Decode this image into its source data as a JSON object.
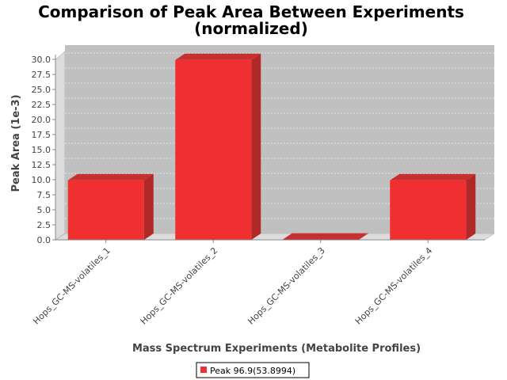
{
  "chart_data": {
    "type": "bar",
    "title_lines": [
      "Comparison of Peak Area Between Experiments",
      "(normalized)"
    ],
    "xlabel": "Mass Spectrum Experiments (Metabolite Profiles)",
    "ylabel": "Peak Area (1e-3)",
    "categories": [
      "Hops_GC-MS-volatiles_1",
      "Hops_GC-MS-volatiles_2",
      "Hops_GC-MS-volatiles_3",
      "Hops_GC-MS-volatiles_4"
    ],
    "series": [
      {
        "name": "Peak 96.9(53.8994)",
        "values": [
          9.9,
          29.9,
          0.05,
          9.9
        ]
      }
    ],
    "ylim": [
      0,
      30.0
    ],
    "yticks": [
      "0.0",
      "2.5",
      "5.0",
      "7.5",
      "10.0",
      "12.5",
      "15.0",
      "17.5",
      "20.0",
      "22.5",
      "25.0",
      "27.5",
      "30.0"
    ],
    "grid": true,
    "legend_position": "bottom-center",
    "colors": {
      "bar": "#f03030",
      "bar_side": "#b02828",
      "bar_top": "#c83030",
      "plot_bg": "#c0c0c0",
      "wall": "#dcdcdc"
    }
  }
}
